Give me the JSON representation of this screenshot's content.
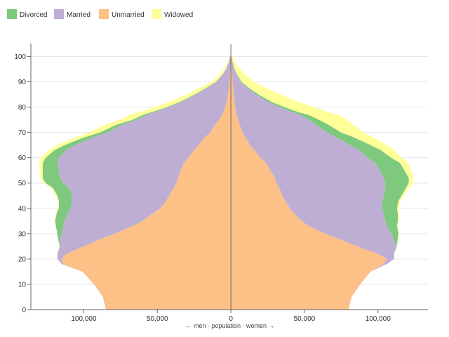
{
  "chart_data": {
    "type": "area",
    "subtype": "population-pyramid-stacked",
    "xlabel": "← men · population · women →",
    "x_tick_labels": [
      "100,000",
      "50,000",
      "0",
      "50,000",
      "100,000"
    ],
    "x_ticks": [
      -100000,
      -50000,
      0,
      50000,
      100000
    ],
    "xlim": [
      -136000,
      134000
    ],
    "y_ticks": [
      0,
      10,
      20,
      30,
      40,
      50,
      60,
      70,
      80,
      90,
      100
    ],
    "ylim": [
      0,
      104
    ],
    "grid": true,
    "legend_position": "top-left",
    "stack_order": [
      "Unmarried",
      "Married",
      "Divorced",
      "Widowed"
    ],
    "legend": [
      {
        "name": "Divorced",
        "color": "#7fc97f"
      },
      {
        "name": "Married",
        "color": "#beaed4"
      },
      {
        "name": "Unmarried",
        "color": "#fdc086"
      },
      {
        "name": "Widowed",
        "color": "#ffff99"
      }
    ],
    "ages": [
      0,
      5,
      10,
      15,
      18,
      20,
      22,
      25,
      28,
      30,
      33,
      35,
      38,
      40,
      43,
      45,
      48,
      50,
      52,
      55,
      58,
      60,
      63,
      65,
      68,
      70,
      73,
      75,
      77,
      78,
      80,
      82,
      85,
      88,
      90,
      93,
      95,
      98,
      100
    ],
    "men": {
      "Unmarried": [
        85000,
        87000,
        93000,
        101000,
        114000,
        115000,
        112000,
        100000,
        88000,
        79000,
        67000,
        60000,
        53000,
        48000,
        44000,
        42000,
        39000,
        37000,
        36000,
        34000,
        32000,
        29000,
        25000,
        22000,
        18000,
        14000,
        11000,
        8000,
        6000,
        5000,
        4000,
        3000,
        2000,
        1300,
        900,
        500,
        300,
        150,
        80
      ],
      "Married": [
        0,
        0,
        0,
        0,
        1000,
        3000,
        6000,
        16000,
        28000,
        36000,
        47000,
        53000,
        58000,
        61000,
        64000,
        66000,
        71000,
        77000,
        80000,
        83000,
        86000,
        88000,
        87000,
        84000,
        76000,
        70000,
        63000,
        56000,
        51000,
        47000,
        38000,
        31000,
        22000,
        14000,
        9000,
        5000,
        3000,
        1200,
        500
      ],
      "Divorced": [
        0,
        0,
        0,
        0,
        0,
        0,
        0,
        400,
        1500,
        3000,
        5000,
        6500,
        7500,
        8000,
        9000,
        10000,
        11000,
        12000,
        12000,
        11000,
        10000,
        9000,
        8000,
        7000,
        6000,
        5000,
        4000,
        3000,
        2500,
        2000,
        1500,
        1100,
        700,
        400,
        250,
        120,
        60,
        20,
        10
      ],
      "Widowed": [
        0,
        0,
        0,
        0,
        0,
        0,
        0,
        0,
        0,
        100,
        200,
        300,
        400,
        500,
        600,
        800,
        1000,
        1200,
        1500,
        2000,
        2500,
        3000,
        4000,
        5000,
        6000,
        7000,
        8000,
        9000,
        9000,
        8500,
        8000,
        7000,
        5500,
        4200,
        3200,
        2000,
        1300,
        600,
        300
      ]
    },
    "women": {
      "Unmarried": [
        80000,
        82000,
        88000,
        95000,
        104000,
        106000,
        100000,
        86000,
        73000,
        64000,
        53000,
        48000,
        43000,
        40000,
        37000,
        35000,
        33000,
        31000,
        30000,
        27000,
        24000,
        20000,
        16000,
        13000,
        10000,
        8000,
        6000,
        5000,
        4000,
        3500,
        3000,
        2500,
        2000,
        1500,
        1200,
        800,
        600,
        300,
        150
      ],
      "Married": [
        0,
        0,
        0,
        0,
        2000,
        5000,
        11000,
        26000,
        38000,
        45000,
        53000,
        57000,
        61000,
        63000,
        66000,
        69000,
        72000,
        74000,
        74000,
        74000,
        74000,
        73000,
        71000,
        68000,
        62000,
        57000,
        52000,
        48000,
        43000,
        38000,
        30000,
        23000,
        15000,
        9000,
        5500,
        3000,
        1800,
        700,
        300
      ],
      "Divorced": [
        0,
        0,
        0,
        0,
        0,
        0,
        0,
        700,
        2500,
        5000,
        7000,
        8500,
        9500,
        10000,
        11000,
        12000,
        14000,
        16000,
        17000,
        17000,
        17000,
        16000,
        15000,
        14000,
        12000,
        10000,
        8500,
        7000,
        5500,
        4500,
        3500,
        2600,
        1700,
        900,
        600,
        300,
        150,
        50,
        20
      ],
      "Widowed": [
        0,
        0,
        0,
        0,
        0,
        0,
        0,
        0,
        200,
        300,
        500,
        700,
        900,
        1000,
        1300,
        1600,
        2000,
        2600,
        3300,
        4500,
        5500,
        7000,
        9000,
        11000,
        13000,
        15000,
        17000,
        19000,
        20000,
        20000,
        20000,
        18000,
        15000,
        11000,
        8500,
        5500,
        3500,
        1500,
        700
      ]
    }
  }
}
